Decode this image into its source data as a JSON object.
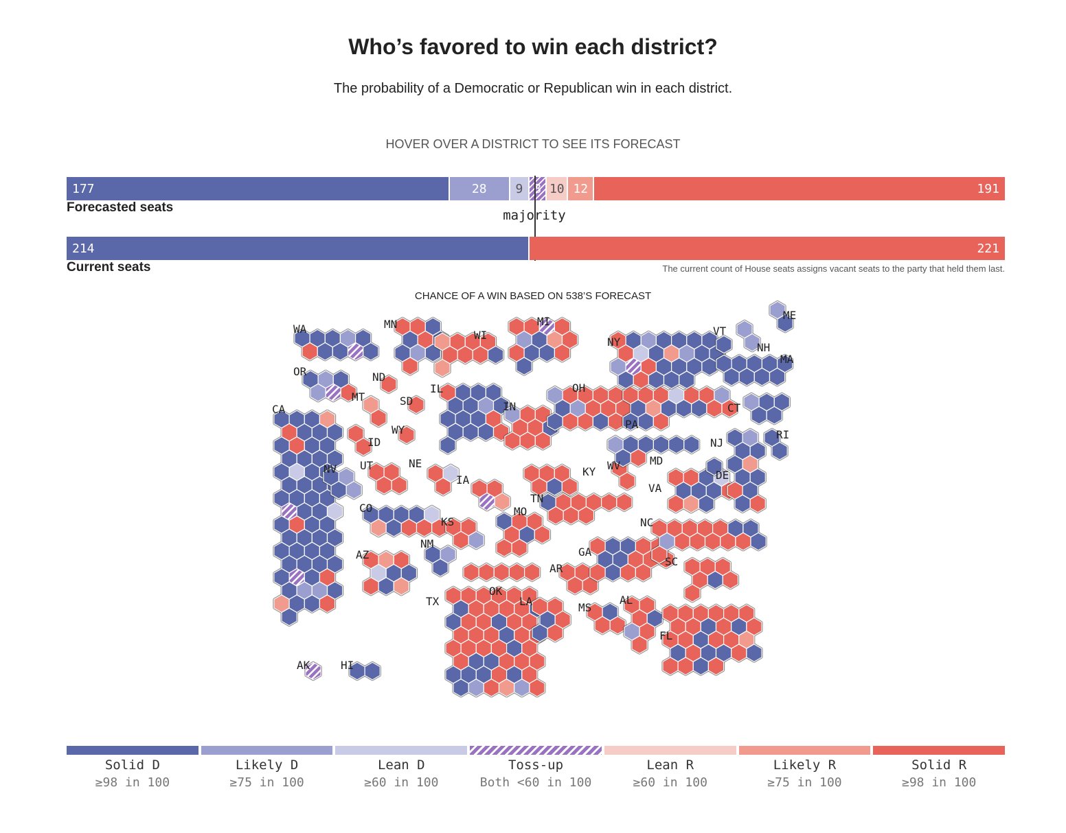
{
  "title": "Who’s favored to win each district?",
  "subtitle": "The probability of a Democratic or Republican win in each district.",
  "hint": "HOVER OVER A DISTRICT TO SEE ITS FORECAST",
  "forecast": {
    "label": "Forecasted seats",
    "segments": [
      {
        "cat": "solid_d",
        "value": 177,
        "text": "177"
      },
      {
        "cat": "likely_d",
        "value": 28,
        "text": "28"
      },
      {
        "cat": "lean_d",
        "value": 9,
        "text": "9"
      },
      {
        "cat": "tossup",
        "value": 8,
        "text": "8"
      },
      {
        "cat": "lean_r",
        "value": 10,
        "text": "10"
      },
      {
        "cat": "likely_r",
        "value": 12,
        "text": "12"
      },
      {
        "cat": "solid_r",
        "value": 191,
        "text": "191"
      }
    ]
  },
  "majority_label": "majority",
  "current": {
    "label": "Current seats",
    "segments": [
      {
        "cat": "solid_d",
        "value": 214,
        "text": "214"
      },
      {
        "cat": "solid_r",
        "value": 221,
        "text": "221"
      }
    ]
  },
  "note": "The current count of House seats assigns vacant seats to the party that held them last.",
  "map_title": "CHANCE OF A WIN BASED ON 538’S FORECAST",
  "colors": {
    "solid_d": "#5a68a9",
    "likely_d": "#9a9fd0",
    "lean_d": "#c8cae6",
    "tossup": "#9a72c2",
    "lean_r": "#f6ccc6",
    "likely_r": "#f09b8d",
    "solid_r": "#e8645a"
  },
  "legend": [
    {
      "cat": "solid_d",
      "name": "Solid D",
      "desc": "≥98 in 100"
    },
    {
      "cat": "likely_d",
      "name": "Likely D",
      "desc": "≥75 in 100"
    },
    {
      "cat": "lean_d",
      "name": "Lean D",
      "desc": "≥60 in 100"
    },
    {
      "cat": "tossup",
      "name": "Toss-up",
      "desc": "Both <60 in 100"
    },
    {
      "cat": "lean_r",
      "name": "Lean R",
      "desc": "≥60 in 100"
    },
    {
      "cat": "likely_r",
      "name": "Likely R",
      "desc": "≥75 in 100"
    },
    {
      "cat": "solid_r",
      "name": "Solid R",
      "desc": "≥98 in 100"
    }
  ],
  "states": [
    {
      "abbr": "WA",
      "districts": [
        "D",
        "D",
        "D",
        "LD",
        "D",
        "R",
        "D",
        "D",
        "T",
        "D"
      ]
    },
    {
      "abbr": "OR",
      "districts": [
        "D",
        "LD",
        "D",
        "LD",
        "T",
        "R"
      ]
    },
    {
      "abbr": "CA",
      "districts": [
        "D",
        "D",
        "D",
        "LR",
        "R",
        "D",
        "D",
        "D",
        "D",
        "R",
        "D",
        "D",
        "D",
        "D",
        "D",
        "D",
        "D",
        "ND",
        "D",
        "D",
        "D",
        "D",
        "D",
        "D",
        "D",
        "D",
        "D",
        "D",
        "T",
        "D",
        "D",
        "ND",
        "D",
        "R",
        "D",
        "D",
        "D",
        "D",
        "D",
        "D",
        "D",
        "D",
        "D",
        "D",
        "D",
        "D",
        "D",
        "D",
        "D",
        "T",
        "D",
        "R",
        "D",
        "LD",
        "LD",
        "D",
        "LR",
        "D",
        "D",
        "R",
        "D"
      ]
    },
    {
      "abbr": "NV",
      "districts": [
        "D",
        "LD",
        "D",
        "LD"
      ]
    },
    {
      "abbr": "AK",
      "districts": [
        "T"
      ]
    },
    {
      "abbr": "HI",
      "districts": [
        "D",
        "D"
      ]
    },
    {
      "abbr": "ID",
      "districts": [
        "R",
        "R"
      ]
    },
    {
      "abbr": "MT",
      "districts": [
        "LR",
        "R"
      ]
    },
    {
      "abbr": "WY",
      "districts": [
        "R"
      ]
    },
    {
      "abbr": "UT",
      "districts": [
        "R",
        "R",
        "R",
        "R"
      ]
    },
    {
      "abbr": "AZ",
      "districts": [
        "R",
        "LR",
        "R",
        "ND",
        "D",
        "D",
        "R",
        "D",
        "LR"
      ]
    },
    {
      "abbr": "CO",
      "districts": [
        "D",
        "D",
        "D",
        "D",
        "ND",
        "LR",
        "D",
        "R",
        "R",
        "R"
      ]
    },
    {
      "abbr": "NM",
      "districts": [
        "D",
        "LD",
        "D"
      ]
    },
    {
      "abbr": "ND",
      "districts": [
        "R"
      ]
    },
    {
      "abbr": "SD",
      "districts": [
        "R"
      ]
    },
    {
      "abbr": "NE",
      "districts": [
        "R",
        "ND",
        "R"
      ]
    },
    {
      "abbr": "KS",
      "districts": [
        "R",
        "R",
        "R",
        "LD"
      ]
    },
    {
      "abbr": "OK",
      "districts": [
        "R",
        "R",
        "R",
        "R",
        "R"
      ]
    },
    {
      "abbr": "TX",
      "districts": [
        "R",
        "R",
        "R",
        "R",
        "R",
        "R",
        "D",
        "R",
        "R",
        "R",
        "R",
        "D",
        "D",
        "R",
        "R",
        "D",
        "R",
        "R",
        "R",
        "R",
        "R",
        "D",
        "R",
        "R",
        "R",
        "R",
        "R",
        "R",
        "D",
        "R",
        "R",
        "D",
        "D",
        "R",
        "R",
        "R",
        "D",
        "D",
        "D",
        "R",
        "D",
        "R",
        "D",
        "LD",
        "R",
        "LR",
        "LD",
        "R"
      ]
    },
    {
      "abbr": "MN",
      "districts": [
        "R",
        "R",
        "D",
        "D",
        "R",
        "D",
        "D",
        "LD",
        "D",
        "R"
      ]
    },
    {
      "abbr": "IA",
      "districts": [
        "R",
        "R",
        "T",
        "LR"
      ]
    },
    {
      "abbr": "MO",
      "districts": [
        "D",
        "R",
        "R",
        "R",
        "D",
        "R",
        "R",
        "R"
      ]
    },
    {
      "abbr": "AR",
      "districts": [
        "R",
        "R",
        "R",
        "R"
      ]
    },
    {
      "abbr": "LA",
      "districts": [
        "R",
        "R",
        "D",
        "R",
        "D",
        "R"
      ]
    },
    {
      "abbr": "WI",
      "districts": [
        "LR",
        "R",
        "R",
        "R",
        "R",
        "R",
        "R",
        "D",
        "LR"
      ]
    },
    {
      "abbr": "IL",
      "districts": [
        "R",
        "D",
        "D",
        "D",
        "D",
        "D",
        "LD",
        "D",
        "D",
        "D",
        "D",
        "R",
        "D",
        "D",
        "D",
        "R",
        "D"
      ]
    },
    {
      "abbr": "MS",
      "districts": [
        "R",
        "D",
        "R",
        "R"
      ]
    },
    {
      "abbr": "MI",
      "districts": [
        "R",
        "R",
        "T",
        "R",
        "LD",
        "D",
        "LR",
        "R",
        "R",
        "D",
        "D",
        "R",
        "D"
      ]
    },
    {
      "abbr": "IN",
      "districts": [
        "LD",
        "R",
        "R",
        "R",
        "R",
        "D",
        "R",
        "R",
        "R"
      ]
    },
    {
      "abbr": "KY",
      "districts": [
        "R",
        "R",
        "R",
        "R",
        "D",
        "R"
      ]
    },
    {
      "abbr": "TN",
      "districts": [
        "D",
        "R",
        "R",
        "R",
        "R",
        "R",
        "R",
        "R",
        "R"
      ]
    },
    {
      "abbr": "AL",
      "districts": [
        "R",
        "R",
        "R",
        "D",
        "LD",
        "R",
        "R"
      ]
    },
    {
      "abbr": "OH",
      "districts": [
        "LD",
        "R",
        "R",
        "R",
        "R",
        "D",
        "LD",
        "R",
        "R",
        "R",
        "D",
        "R",
        "R",
        "D",
        "R"
      ]
    },
    {
      "abbr": "GA",
      "districts": [
        "R",
        "D",
        "D",
        "R",
        "R",
        "D",
        "D",
        "R",
        "R",
        "R",
        "R",
        "D",
        "R",
        "R"
      ]
    },
    {
      "abbr": "FL",
      "districts": [
        "R",
        "R",
        "R",
        "R",
        "R",
        "R",
        "R",
        "R",
        "D",
        "R",
        "D",
        "R",
        "R",
        "R",
        "D",
        "R",
        "R",
        "LR",
        "D",
        "R",
        "D",
        "D",
        "R",
        "D",
        "R",
        "R",
        "D",
        "R"
      ]
    },
    {
      "abbr": "WV",
      "districts": [
        "R",
        "R"
      ]
    },
    {
      "abbr": "PA",
      "districts": [
        "R",
        "R",
        "R",
        "ND",
        "R",
        "R",
        "LD",
        "D",
        "LR",
        "D",
        "D",
        "D",
        "R",
        "R",
        "D",
        "D",
        "R"
      ]
    },
    {
      "abbr": "VA",
      "districts": [
        "R",
        "R",
        "D",
        "ND",
        "D",
        "D",
        "D",
        "R",
        "R",
        "LR",
        "D"
      ]
    },
    {
      "abbr": "NC",
      "districts": [
        "R",
        "R",
        "R",
        "R",
        "R",
        "D",
        "D",
        "LD",
        "R",
        "R",
        "R",
        "R",
        "R",
        "D",
        "R"
      ]
    },
    {
      "abbr": "SC",
      "districts": [
        "R",
        "R",
        "R",
        "R",
        "D",
        "R",
        "R"
      ]
    },
    {
      "abbr": "MD",
      "districts": [
        "LD",
        "D",
        "D",
        "D",
        "D",
        "D",
        "D",
        "R"
      ]
    },
    {
      "abbr": "DE",
      "districts": [
        "D"
      ]
    },
    {
      "abbr": "NJ",
      "districts": [
        "D",
        "LD",
        "D",
        "D",
        "D",
        "LR",
        "D",
        "D",
        "R",
        "D",
        "D",
        "R"
      ]
    },
    {
      "abbr": "NY",
      "districts": [
        "R",
        "D",
        "LD",
        "D",
        "D",
        "D",
        "D",
        "R",
        "ND",
        "D",
        "LR",
        "LD",
        "D",
        "D",
        "LD",
        "T",
        "R",
        "D",
        "D",
        "D",
        "D",
        "D",
        "R",
        "D",
        "D",
        "D"
      ]
    },
    {
      "abbr": "CT",
      "districts": [
        "LD",
        "D",
        "D",
        "D",
        "D"
      ]
    },
    {
      "abbr": "RI",
      "districts": [
        "D",
        "D"
      ]
    },
    {
      "abbr": "MA",
      "districts": [
        "D",
        "D",
        "D",
        "D",
        "D",
        "D",
        "D",
        "D",
        "D"
      ]
    },
    {
      "abbr": "VT",
      "districts": [
        "D"
      ]
    },
    {
      "abbr": "NH",
      "districts": [
        "LD",
        "LD"
      ]
    },
    {
      "abbr": "ME",
      "districts": [
        "LD",
        "D"
      ]
    }
  ]
}
